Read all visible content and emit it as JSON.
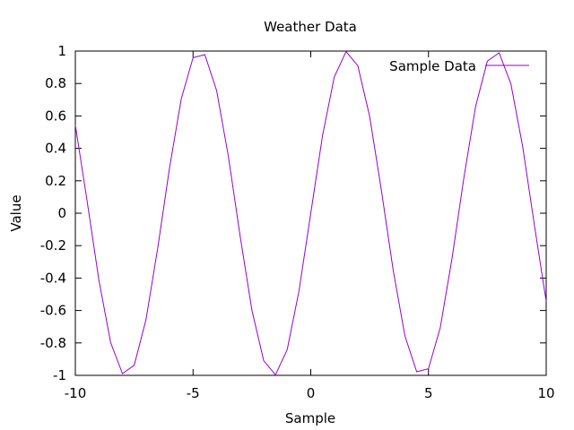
{
  "chart_data": {
    "type": "line",
    "title": "Weather Data",
    "xlabel": "Sample",
    "ylabel": "Value",
    "xlim": [
      -10,
      10
    ],
    "ylim": [
      -1,
      1
    ],
    "x_ticks": [
      -10,
      -5,
      0,
      5,
      10
    ],
    "y_ticks": [
      -1,
      -0.8,
      -0.6,
      -0.4,
      -0.2,
      0,
      0.2,
      0.4,
      0.6,
      0.8,
      1
    ],
    "x_tick_labels": [
      "-10",
      "-5",
      "0",
      "5",
      "10"
    ],
    "y_tick_labels": [
      "-1",
      "-0.8",
      "-0.6",
      "-0.4",
      "-0.2",
      "0",
      "0.2",
      "0.4",
      "0.6",
      "0.8",
      "1"
    ],
    "grid": false,
    "legend_position": "top-right",
    "series": [
      {
        "name": "Sample Data",
        "color": "#9400d3",
        "x": [
          -10,
          -9.5,
          -9,
          -8.5,
          -8,
          -7.5,
          -7,
          -6.5,
          -6,
          -5.5,
          -5,
          -4.5,
          -4,
          -3.5,
          -3,
          -2.5,
          -2,
          -1.5,
          -1,
          -0.5,
          0,
          0.5,
          1,
          1.5,
          2,
          2.5,
          3,
          3.5,
          4,
          4.5,
          5,
          5.5,
          6,
          6.5,
          7,
          7.5,
          8,
          8.5,
          9,
          9.5,
          10
        ],
        "y": [
          0.544,
          0.075,
          -0.412,
          -0.798,
          -0.989,
          -0.938,
          -0.657,
          -0.215,
          0.279,
          0.706,
          0.959,
          0.978,
          0.757,
          0.351,
          -0.141,
          -0.598,
          -0.909,
          -0.997,
          -0.841,
          -0.479,
          0,
          0.479,
          0.841,
          0.997,
          0.909,
          0.598,
          0.141,
          -0.351,
          -0.757,
          -0.978,
          -0.959,
          -0.706,
          -0.279,
          0.215,
          0.657,
          0.938,
          0.989,
          0.798,
          0.412,
          -0.075,
          -0.544
        ]
      }
    ]
  }
}
